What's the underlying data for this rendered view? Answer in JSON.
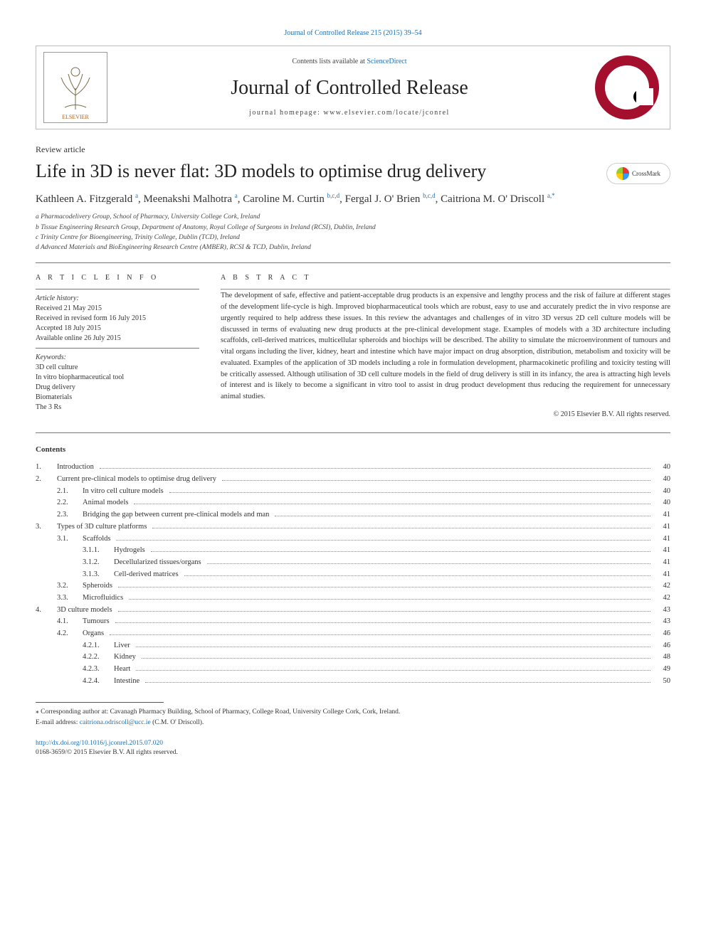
{
  "top_link": "Journal of Controlled Release 215 (2015) 39–54",
  "header": {
    "contents_prefix": "Contents lists available at ",
    "contents_link": "ScienceDirect",
    "journal_name": "Journal of Controlled Release",
    "homepage_label": "journal homepage: ",
    "homepage_url": "www.elsevier.com/locate/jconrel",
    "elsevier_label": "ELSEVIER"
  },
  "article_type": "Review article",
  "title": "Life in 3D is never flat: 3D models to optimise drug delivery",
  "crossmark_label": "CrossMark",
  "authors_html": "Kathleen A. Fitzgerald <sup>a</sup>, Meenakshi Malhotra <sup>a</sup>, Caroline M. Curtin <sup>b,c,d</sup>, Fergal J. O' Brien <sup>b,c,d</sup>, Caitriona M. O' Driscoll <sup>a,*</sup>",
  "affiliations": [
    "a Pharmacodelivery Group, School of Pharmacy, University College Cork, Ireland",
    "b Tissue Engineering Research Group, Department of Anatomy, Royal College of Surgeons in Ireland (RCSI), Dublin, Ireland",
    "c Trinity Centre for Bioengineering, Trinity College, Dublin (TCD), Ireland",
    "d Advanced Materials and BioEngineering Research Centre (AMBER), RCSI & TCD, Dublin, Ireland"
  ],
  "info": {
    "heading": "A R T I C L E   I N F O",
    "history_label": "Article history:",
    "history": [
      "Received 21 May 2015",
      "Received in revised form 16 July 2015",
      "Accepted 18 July 2015",
      "Available online 26 July 2015"
    ],
    "keywords_label": "Keywords:",
    "keywords": [
      "3D cell culture",
      "In vitro biopharmaceutical tool",
      "Drug delivery",
      "Biomaterials",
      "The 3 Rs"
    ]
  },
  "abstract": {
    "heading": "A B S T R A C T",
    "text": "The development of safe, effective and patient-acceptable drug products is an expensive and lengthy process and the risk of failure at different stages of the development life-cycle is high. Improved biopharmaceutical tools which are robust, easy to use and accurately predict the in vivo response are urgently required to help address these issues. In this review the advantages and challenges of in vitro 3D versus 2D cell culture models will be discussed in terms of evaluating new drug products at the pre-clinical development stage. Examples of models with a 3D architecture including scaffolds, cell-derived matrices, multicellular spheroids and biochips will be described. The ability to simulate the microenvironment of tumours and vital organs including the liver, kidney, heart and intestine which have major impact on drug absorption, distribution, metabolism and toxicity will be evaluated. Examples of the application of 3D models including a role in formulation development, pharmacokinetic profiling and toxicity testing will be critically assessed. Although utilisation of 3D cell culture models in the field of drug delivery is still in its infancy, the area is attracting high levels of interest and is likely to become a significant in vitro tool to assist in drug product development thus reducing the requirement for unnecessary animal studies.",
    "copyright": "© 2015 Elsevier B.V. All rights reserved."
  },
  "contents_heading": "Contents",
  "toc": [
    {
      "n": "1.",
      "t": "Introduction",
      "p": "40",
      "i": 0
    },
    {
      "n": "2.",
      "t": "Current pre-clinical models to optimise drug delivery",
      "p": "40",
      "i": 0
    },
    {
      "n": "2.1.",
      "t": "In vitro cell culture models",
      "p": "40",
      "i": 1
    },
    {
      "n": "2.2.",
      "t": "Animal models",
      "p": "40",
      "i": 1
    },
    {
      "n": "2.3.",
      "t": "Bridging the gap between current pre-clinical models and man",
      "p": "41",
      "i": 1
    },
    {
      "n": "3.",
      "t": "Types of 3D culture platforms",
      "p": "41",
      "i": 0
    },
    {
      "n": "3.1.",
      "t": "Scaffolds",
      "p": "41",
      "i": 1
    },
    {
      "n": "3.1.1.",
      "t": "Hydrogels",
      "p": "41",
      "i": 2
    },
    {
      "n": "3.1.2.",
      "t": "Decellularized tissues/organs",
      "p": "41",
      "i": 2
    },
    {
      "n": "3.1.3.",
      "t": "Cell-derived matrices",
      "p": "41",
      "i": 2
    },
    {
      "n": "3.2.",
      "t": "Spheroids",
      "p": "42",
      "i": 1
    },
    {
      "n": "3.3.",
      "t": "Microfluidics",
      "p": "42",
      "i": 1
    },
    {
      "n": "4.",
      "t": "3D culture models",
      "p": "43",
      "i": 0
    },
    {
      "n": "4.1.",
      "t": "Tumours",
      "p": "43",
      "i": 1
    },
    {
      "n": "4.2.",
      "t": "Organs",
      "p": "46",
      "i": 1
    },
    {
      "n": "4.2.1.",
      "t": "Liver",
      "p": "46",
      "i": 2
    },
    {
      "n": "4.2.2.",
      "t": "Kidney",
      "p": "48",
      "i": 2
    },
    {
      "n": "4.2.3.",
      "t": "Heart",
      "p": "49",
      "i": 2
    },
    {
      "n": "4.2.4.",
      "t": "Intestine",
      "p": "50",
      "i": 2
    }
  ],
  "footnote": {
    "corr": "⁎ Corresponding author at: Cavanagh Pharmacy Building, School of Pharmacy, College Road, University College Cork, Cork, Ireland.",
    "email_label": "E-mail address: ",
    "email": "caitriona.odriscoll@ucc.ie",
    "email_tail": " (C.M. O' Driscoll)."
  },
  "doi": {
    "url": "http://dx.doi.org/10.1016/j.jconrel.2015.07.020",
    "issn_line": "0168-3659/© 2015 Elsevier B.V. All rights reserved."
  },
  "colors": {
    "link": "#1a6fb5",
    "brand_red": "#a30f2d",
    "border": "#bbbbbb",
    "text": "#333333"
  }
}
